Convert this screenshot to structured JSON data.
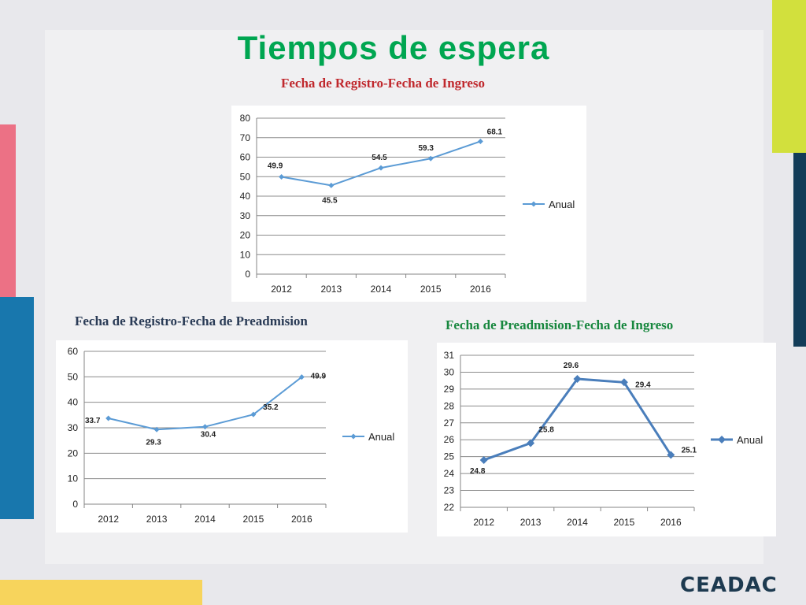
{
  "title": "Tiempos de espera",
  "logo": "CEADAC",
  "colors": {
    "title_green": "#00a651",
    "series_blue": "#5b9bd5",
    "series_blue_dark": "#4a7ebb"
  },
  "chart_data": [
    {
      "type": "line",
      "title": "Fecha de Registro-Fecha de Ingreso",
      "categories": [
        "2012",
        "2013",
        "2014",
        "2015",
        "2016"
      ],
      "series": [
        {
          "name": "Anual",
          "values": [
            49.9,
            45.5,
            54.5,
            59.3,
            68.1
          ]
        }
      ],
      "ylim": [
        0,
        80
      ],
      "yticks": [
        0,
        10,
        20,
        30,
        40,
        50,
        60,
        70,
        80
      ],
      "grid": true,
      "legend": "right"
    },
    {
      "type": "line",
      "title": "Fecha de Registro-Fecha de Preadmision",
      "categories": [
        "2012",
        "2013",
        "2014",
        "2015",
        "2016"
      ],
      "series": [
        {
          "name": "Anual",
          "values": [
            33.7,
            29.3,
            30.4,
            35.2,
            49.9
          ]
        }
      ],
      "ylim": [
        0,
        60
      ],
      "yticks": [
        0,
        10,
        20,
        30,
        40,
        50,
        60
      ],
      "grid": true,
      "legend": "right"
    },
    {
      "type": "line",
      "title": "Fecha de Preadmision-Fecha de Ingreso",
      "categories": [
        "2012",
        "2013",
        "2014",
        "2015",
        "2016"
      ],
      "series": [
        {
          "name": "Anual",
          "values": [
            24.8,
            25.8,
            29.6,
            29.4,
            25.1
          ]
        }
      ],
      "ylim": [
        22,
        31
      ],
      "yticks": [
        22,
        23,
        24,
        25,
        26,
        27,
        28,
        29,
        30,
        31
      ],
      "grid": true,
      "legend": "right"
    }
  ]
}
